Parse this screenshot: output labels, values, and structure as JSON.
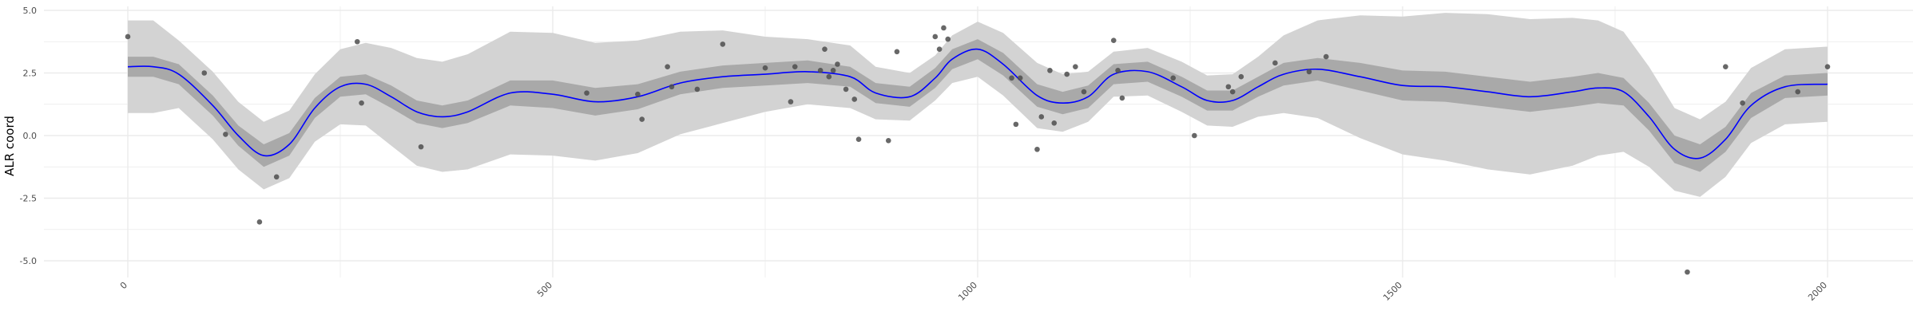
{
  "chart_data": {
    "type": "line",
    "title": "",
    "xlabel": "",
    "ylabel": "ALR coord",
    "xlim": [
      -90,
      2095
    ],
    "ylim": [
      -5.6,
      5.1
    ],
    "x_ticks": [
      0,
      500,
      1000,
      1500,
      2000
    ],
    "x_tick_labels": [
      "0",
      "500",
      "1000",
      "1500",
      "2000"
    ],
    "y_ticks": [
      -5.0,
      -2.5,
      0.0,
      2.5,
      5.0
    ],
    "y_tick_labels": [
      "-5.0",
      "-2.5",
      "0.0",
      "2.5",
      "5.0"
    ],
    "grid": true,
    "colors": {
      "mean_line": "#0000ff",
      "inner_band": "#a9a9a9",
      "outer_band": "#d3d3d3",
      "points": "#4d4d4d",
      "grid": "#ebebeb"
    },
    "mean": {
      "x": [
        0,
        30,
        60,
        100,
        130,
        160,
        190,
        220,
        250,
        280,
        310,
        340,
        370,
        400,
        450,
        500,
        550,
        600,
        650,
        700,
        750,
        800,
        850,
        880,
        920,
        950,
        970,
        1000,
        1030,
        1070,
        1100,
        1130,
        1160,
        1200,
        1240,
        1270,
        1300,
        1330,
        1360,
        1400,
        1450,
        1500,
        1550,
        1600,
        1650,
        1700,
        1730,
        1760,
        1790,
        1820,
        1850,
        1880,
        1910,
        1950,
        2000
      ],
      "y": [
        2.75,
        2.75,
        2.45,
        1.2,
        0.0,
        -0.8,
        -0.35,
        1.1,
        1.95,
        2.05,
        1.55,
        0.95,
        0.75,
        0.95,
        1.7,
        1.65,
        1.35,
        1.55,
        2.1,
        2.35,
        2.45,
        2.55,
        2.35,
        1.7,
        1.55,
        2.3,
        3.05,
        3.45,
        2.85,
        1.6,
        1.3,
        1.55,
        2.45,
        2.55,
        1.95,
        1.4,
        1.4,
        1.95,
        2.45,
        2.65,
        2.35,
        2.0,
        1.95,
        1.75,
        1.55,
        1.75,
        1.9,
        1.75,
        0.75,
        -0.55,
        -0.9,
        -0.15,
        1.2,
        1.95,
        2.05
      ]
    },
    "inner_band": {
      "half_width": [
        0.4,
        0.4,
        0.4,
        0.4,
        0.4,
        0.45,
        0.45,
        0.4,
        0.4,
        0.4,
        0.45,
        0.45,
        0.45,
        0.45,
        0.5,
        0.55,
        0.55,
        0.5,
        0.45,
        0.45,
        0.45,
        0.45,
        0.4,
        0.4,
        0.4,
        0.4,
        0.4,
        0.4,
        0.45,
        0.45,
        0.45,
        0.45,
        0.4,
        0.4,
        0.4,
        0.4,
        0.4,
        0.4,
        0.45,
        0.45,
        0.55,
        0.6,
        0.6,
        0.6,
        0.6,
        0.6,
        0.6,
        0.55,
        0.55,
        0.55,
        0.55,
        0.5,
        0.5,
        0.45,
        0.45
      ]
    },
    "outer_band": {
      "half_width": [
        1.85,
        1.85,
        1.35,
        1.35,
        1.35,
        1.35,
        1.35,
        1.35,
        1.5,
        1.65,
        1.95,
        2.15,
        2.2,
        2.3,
        2.45,
        2.45,
        2.35,
        2.25,
        2.05,
        1.85,
        1.5,
        1.3,
        1.25,
        1.05,
        0.95,
        0.9,
        0.95,
        1.1,
        1.25,
        1.3,
        1.15,
        1.0,
        0.9,
        0.95,
        1.0,
        1.0,
        1.05,
        1.2,
        1.55,
        1.95,
        2.45,
        2.75,
        2.95,
        3.1,
        3.1,
        2.95,
        2.7,
        2.4,
        2.0,
        1.65,
        1.55,
        1.5,
        1.5,
        1.5,
        1.5
      ]
    },
    "points": [
      {
        "x": 0,
        "y": 3.95
      },
      {
        "x": 90,
        "y": 2.5
      },
      {
        "x": 115,
        "y": 0.05
      },
      {
        "x": 155,
        "y": -3.45
      },
      {
        "x": 175,
        "y": -1.65
      },
      {
        "x": 270,
        "y": 3.75
      },
      {
        "x": 275,
        "y": 1.3
      },
      {
        "x": 345,
        "y": -0.45
      },
      {
        "x": 540,
        "y": 1.7
      },
      {
        "x": 600,
        "y": 1.65
      },
      {
        "x": 605,
        "y": 0.65
      },
      {
        "x": 635,
        "y": 2.75
      },
      {
        "x": 640,
        "y": 1.95
      },
      {
        "x": 670,
        "y": 1.85
      },
      {
        "x": 700,
        "y": 3.65
      },
      {
        "x": 750,
        "y": 2.7
      },
      {
        "x": 780,
        "y": 1.35
      },
      {
        "x": 785,
        "y": 2.75
      },
      {
        "x": 815,
        "y": 2.6
      },
      {
        "x": 820,
        "y": 3.45
      },
      {
        "x": 825,
        "y": 2.35
      },
      {
        "x": 830,
        "y": 2.6
      },
      {
        "x": 835,
        "y": 2.85
      },
      {
        "x": 845,
        "y": 1.85
      },
      {
        "x": 855,
        "y": 1.45
      },
      {
        "x": 860,
        "y": -0.15
      },
      {
        "x": 895,
        "y": -0.2
      },
      {
        "x": 905,
        "y": 3.35
      },
      {
        "x": 950,
        "y": 3.95
      },
      {
        "x": 955,
        "y": 3.45
      },
      {
        "x": 960,
        "y": 4.3
      },
      {
        "x": 965,
        "y": 3.85
      },
      {
        "x": 1040,
        "y": 2.3
      },
      {
        "x": 1045,
        "y": 0.45
      },
      {
        "x": 1050,
        "y": 2.3
      },
      {
        "x": 1070,
        "y": -0.55
      },
      {
        "x": 1075,
        "y": 0.75
      },
      {
        "x": 1085,
        "y": 2.6
      },
      {
        "x": 1090,
        "y": 0.5
      },
      {
        "x": 1105,
        "y": 2.45
      },
      {
        "x": 1115,
        "y": 2.75
      },
      {
        "x": 1125,
        "y": 1.75
      },
      {
        "x": 1160,
        "y": 3.8
      },
      {
        "x": 1165,
        "y": 2.6
      },
      {
        "x": 1170,
        "y": 1.5
      },
      {
        "x": 1230,
        "y": 2.3
      },
      {
        "x": 1255,
        "y": 0.0
      },
      {
        "x": 1295,
        "y": 1.95
      },
      {
        "x": 1300,
        "y": 1.75
      },
      {
        "x": 1310,
        "y": 2.35
      },
      {
        "x": 1350,
        "y": 2.9
      },
      {
        "x": 1390,
        "y": 2.55
      },
      {
        "x": 1410,
        "y": 3.15
      },
      {
        "x": 1835,
        "y": -5.45
      },
      {
        "x": 1880,
        "y": 2.75
      },
      {
        "x": 1900,
        "y": 1.3
      },
      {
        "x": 1965,
        "y": 1.75
      },
      {
        "x": 2000,
        "y": 2.75
      }
    ]
  }
}
